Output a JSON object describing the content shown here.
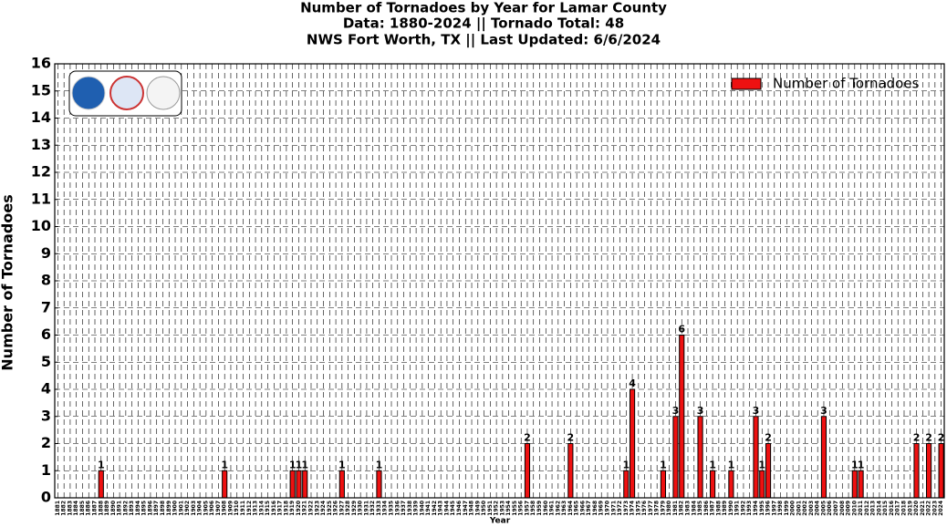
{
  "chart_data": {
    "type": "bar",
    "title": [
      "Number of Tornadoes by Year for Lamar County",
      "Data: 1880-2024 || Tornado Total: 48",
      "NWS Fort Worth, TX || Last Updated: 6/6/2024"
    ],
    "x_label": "Year",
    "y_label": "Number of Tornadoes",
    "categories": [
      "1881",
      "1882",
      "1883",
      "1884",
      "1885",
      "1886",
      "1887",
      "1888",
      "1889",
      "1890",
      "1891",
      "1892",
      "1893",
      "1894",
      "1895",
      "1896",
      "1897",
      "1898",
      "1899",
      "1900",
      "1901",
      "1902",
      "1903",
      "1904",
      "1905",
      "1906",
      "1907",
      "1908",
      "1909",
      "1910",
      "1911",
      "1912",
      "1913",
      "1914",
      "1915",
      "1916",
      "1917",
      "1918",
      "1919",
      "1920",
      "1921",
      "1922",
      "1923",
      "1924",
      "1925",
      "1926",
      "1927",
      "1928",
      "1929",
      "1930",
      "1931",
      "1932",
      "1933",
      "1934",
      "1935",
      "1936",
      "1937",
      "1938",
      "1939",
      "1940",
      "1941",
      "1942",
      "1943",
      "1944",
      "1945",
      "1946",
      "1947",
      "1948",
      "1949",
      "1950",
      "1951",
      "1952",
      "1953",
      "1954",
      "1955",
      "1956",
      "1957",
      "1958",
      "1959",
      "1960",
      "1961",
      "1962",
      "1963",
      "1964",
      "1965",
      "1966",
      "1967",
      "1968",
      "1969",
      "1970",
      "1971",
      "1972",
      "1973",
      "1974",
      "1975",
      "1976",
      "1977",
      "1978",
      "1979",
      "1980",
      "1981",
      "1982",
      "1983",
      "1984",
      "1985",
      "1986",
      "1987",
      "1988",
      "1989",
      "1990",
      "1991",
      "1992",
      "1993",
      "1994",
      "1995",
      "1996",
      "1997",
      "1998",
      "1999",
      "2000",
      "2001",
      "2002",
      "2003",
      "2004",
      "2005",
      "2006",
      "2007",
      "2008",
      "2009",
      "2010",
      "2011",
      "2012",
      "2013",
      "2014",
      "2015",
      "2016",
      "2017",
      "2018",
      "2019",
      "2020",
      "2021",
      "2022",
      "2023",
      "2024"
    ],
    "series": [
      {
        "name": "Number of Tornadoes",
        "color": "#ee1111",
        "values": [
          0,
          0,
          0,
          0,
          0,
          0,
          0,
          1,
          0,
          0,
          0,
          0,
          0,
          0,
          0,
          0,
          0,
          0,
          0,
          0,
          0,
          0,
          0,
          0,
          0,
          0,
          0,
          1,
          0,
          0,
          0,
          0,
          0,
          0,
          0,
          0,
          0,
          0,
          1,
          1,
          1,
          0,
          0,
          0,
          0,
          0,
          1,
          0,
          0,
          0,
          0,
          0,
          1,
          0,
          0,
          0,
          0,
          0,
          0,
          0,
          0,
          0,
          0,
          0,
          0,
          0,
          0,
          0,
          0,
          0,
          0,
          0,
          0,
          0,
          0,
          0,
          2,
          0,
          0,
          0,
          0,
          0,
          0,
          2,
          0,
          0,
          0,
          0,
          0,
          0,
          0,
          0,
          1,
          4,
          0,
          0,
          0,
          0,
          1,
          0,
          3,
          6,
          0,
          0,
          3,
          0,
          1,
          0,
          0,
          1,
          0,
          0,
          0,
          3,
          1,
          2,
          0,
          0,
          0,
          0,
          0,
          0,
          0,
          0,
          3,
          0,
          0,
          0,
          0,
          1,
          1,
          0,
          0,
          0,
          0,
          0,
          0,
          0,
          0,
          2,
          0,
          2,
          0,
          2
        ]
      }
    ],
    "ylim": [
      0,
      16
    ],
    "yticks": [
      0,
      1,
      2,
      3,
      4,
      5,
      6,
      7,
      8,
      9,
      10,
      11,
      12,
      13,
      14,
      15,
      16
    ],
    "grid": true,
    "legend": "upper right"
  }
}
